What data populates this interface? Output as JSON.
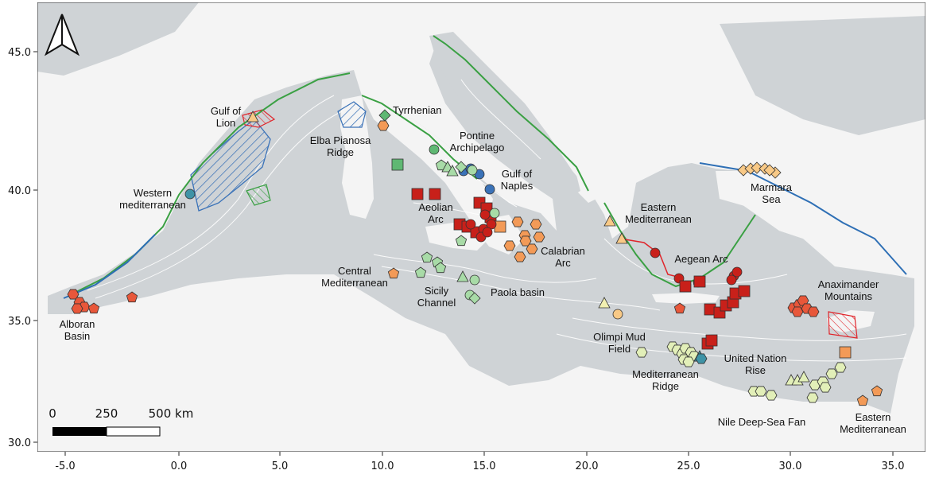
{
  "map": {
    "axis": {
      "x_ticks": [
        "-5.0",
        "0.0",
        "5.0",
        "10.0",
        "15.0",
        "20.0",
        "25.0",
        "30.0",
        "35.0"
      ],
      "y_ticks": [
        "45.0",
        "40.0",
        "35.0",
        "30.0"
      ]
    },
    "scalebar": {
      "labels": [
        "0",
        "250",
        "500 km"
      ]
    },
    "north_arrow": "north-arrow-icon",
    "labels": [
      {
        "id": "gulf-of-lion",
        "lines": [
          "Gulf of",
          "Lion"
        ]
      },
      {
        "id": "elba-pianosa-ridge",
        "lines": [
          "Elba Pianosa",
          "Ridge"
        ]
      },
      {
        "id": "tyrrhenian",
        "lines": [
          "Tyrrhenian"
        ]
      },
      {
        "id": "pontine-archipelago",
        "lines": [
          "Pontine",
          "Archipelago"
        ]
      },
      {
        "id": "gulf-of-naples",
        "lines": [
          "Gulf of",
          "Naples"
        ]
      },
      {
        "id": "western-mediterranean",
        "lines": [
          "Western",
          "mediterranean"
        ]
      },
      {
        "id": "aeolian-arc",
        "lines": [
          "Aeolian",
          "Arc"
        ]
      },
      {
        "id": "calabrian-arc",
        "lines": [
          "Calabrian",
          "Arc"
        ]
      },
      {
        "id": "central-mediterranean",
        "lines": [
          "Central",
          "Mediterranean"
        ]
      },
      {
        "id": "sicily-channel",
        "lines": [
          "Sicily",
          "Channel"
        ]
      },
      {
        "id": "paola-basin",
        "lines": [
          "Paola basin"
        ]
      },
      {
        "id": "alboran-basin",
        "lines": [
          "Alboran",
          "Basin"
        ]
      },
      {
        "id": "eastern-mediterranean-north",
        "lines": [
          "Eastern",
          "Mediterranean"
        ]
      },
      {
        "id": "aegean-arc",
        "lines": [
          "Aegean Arc"
        ]
      },
      {
        "id": "marmara-sea",
        "lines": [
          "Marmara",
          "Sea"
        ]
      },
      {
        "id": "anaximander-mountains",
        "lines": [
          "Anaximander",
          "Mountains"
        ]
      },
      {
        "id": "olimpi-mud-field",
        "lines": [
          "Olimpi Mud",
          "Field"
        ]
      },
      {
        "id": "mediterranean-ridge",
        "lines": [
          "Mediterranean",
          "Ridge"
        ]
      },
      {
        "id": "united-nation-rise",
        "lines": [
          "United Nation",
          "Rise"
        ]
      },
      {
        "id": "nile-deep-sea-fan",
        "lines": [
          "Nile Deep-Sea Fan"
        ]
      },
      {
        "id": "eastern-mediterranean-south",
        "lines": [
          "Eastern",
          "Mediterranean"
        ]
      }
    ],
    "colors": {
      "land": "#f4f4f4",
      "sea": "#cfd3d6",
      "contour": "#ffffff",
      "dark_red": "#c8201a",
      "red_orange": "#e8573a",
      "orange": "#f39a57",
      "light_orange": "#f8c986",
      "pale_yellow": "#f2f0b2",
      "yellow_green": "#e2efb8",
      "light_green": "#a8dba7",
      "green": "#5fb873",
      "teal": "#3f93a6",
      "blue": "#3a72b8",
      "mpa_green": "#3aa043",
      "mpa_blue": "#2e6fb5",
      "mpa_red": "#e0242a"
    }
  }
}
